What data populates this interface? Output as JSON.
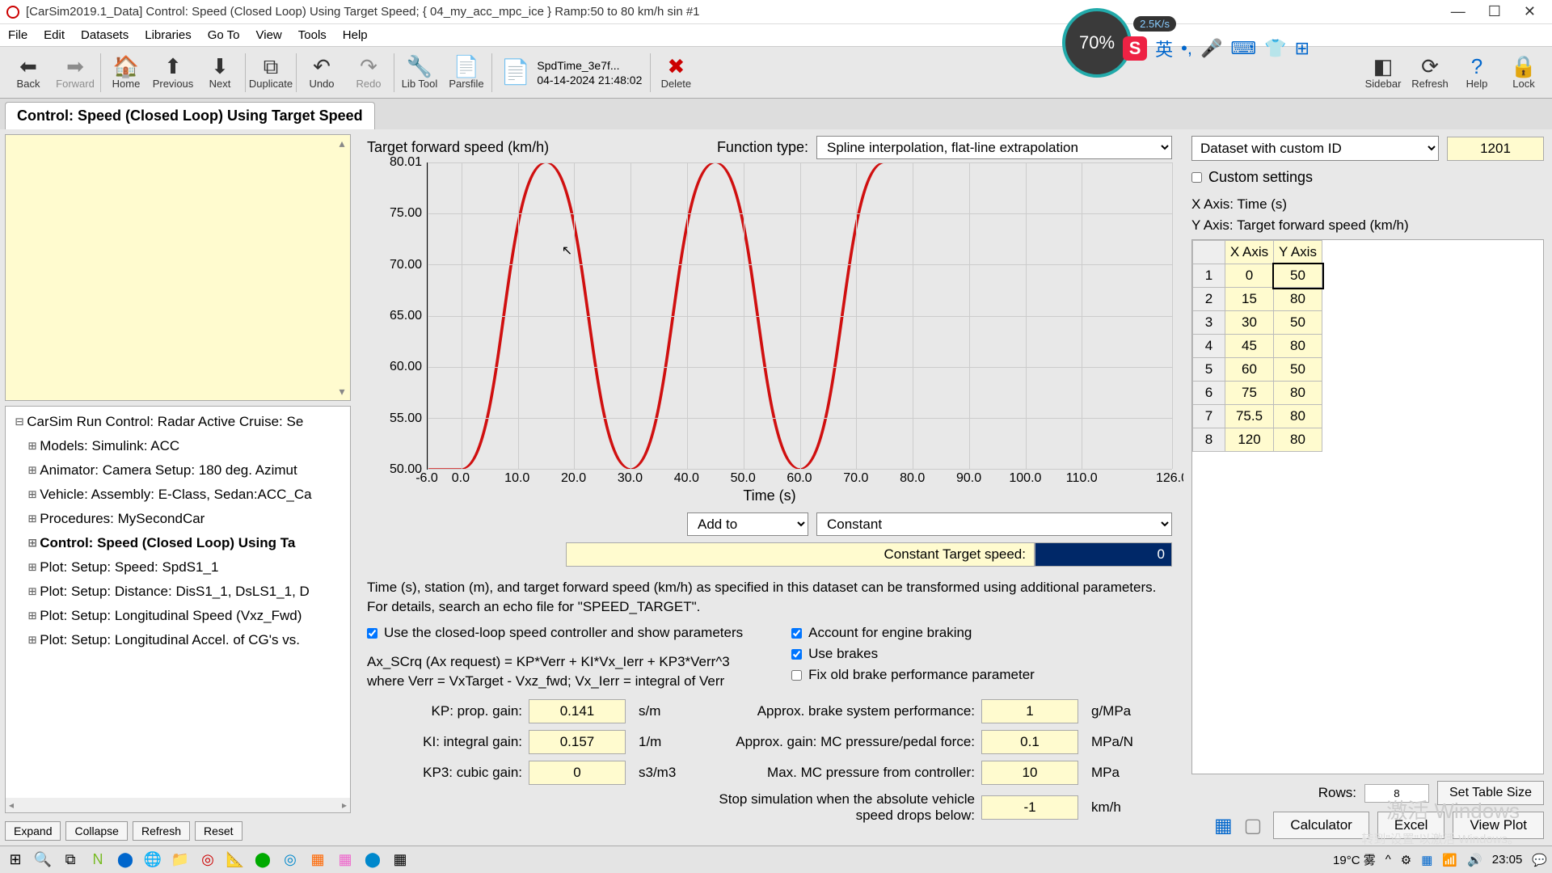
{
  "window": {
    "title": "[CarSim2019.1_Data] Control: Speed (Closed Loop) Using Target Speed; { 04_my_acc_mpc_ice } Ramp:50 to 80 km/h sin #1"
  },
  "menu": [
    "File",
    "Edit",
    "Datasets",
    "Libraries",
    "Go To",
    "View",
    "Tools",
    "Help"
  ],
  "toolbar": {
    "back": "Back",
    "forward": "Forward",
    "home": "Home",
    "previous": "Previous",
    "next": "Next",
    "duplicate": "Duplicate",
    "undo": "Undo",
    "redo": "Redo",
    "libtool": "Lib Tool",
    "parsfile": "Parsfile",
    "file_name": "SpdTime_3e7f...",
    "file_date": "04-14-2024 21:48:02",
    "delete": "Delete",
    "sidebar": "Sidebar",
    "refresh": "Refresh",
    "help": "Help",
    "lock": "Lock"
  },
  "overlay": {
    "percent": "70%",
    "badge": "2.5K/s",
    "ime": "英"
  },
  "tab": "Control: Speed (Closed Loop) Using Target Speed",
  "tree": [
    "CarSim Run Control: Radar Active Cruise: Se",
    "Models: Simulink: ACC",
    "Animator: Camera Setup: 180 deg. Azimut",
    "Vehicle: Assembly: E-Class, Sedan:ACC_Ca",
    "Procedures: MySecondCar",
    "Control: Speed (Closed Loop) Using Ta",
    "Plot: Setup: Speed: SpdS1_1",
    "Plot: Setup: Distance: DisS1_1, DsLS1_1, D",
    "Plot: Setup: Longitudinal Speed (Vxz_Fwd)",
    "Plot: Setup: Longitudinal Accel. of CG's vs."
  ],
  "tree_buttons": {
    "expand": "Expand",
    "collapse": "Collapse",
    "refresh": "Refresh",
    "reset": "Reset"
  },
  "chart": {
    "ylabel": "Target forward speed (km/h)",
    "fn_label": "Function type:",
    "fn_value": "Spline interpolation, flat-line extrapolation",
    "xlabel": "Time (s)",
    "yticks": [
      "80.01",
      "75.00",
      "70.00",
      "65.00",
      "60.00",
      "55.00",
      "50.00"
    ],
    "xticks": [
      "-6.0",
      "0.0",
      "10.0",
      "20.0",
      "30.0",
      "40.0",
      "50.0",
      "60.0",
      "70.0",
      "80.0",
      "90.0",
      "100.0",
      "110.0",
      "126.0"
    ],
    "ylim": [
      50,
      80.01
    ],
    "xlim": [
      -6,
      126
    ],
    "line_color": "#d01010",
    "grid_color": "#cccccc",
    "data": [
      [
        -6,
        50
      ],
      [
        0,
        50
      ],
      [
        15,
        80
      ],
      [
        30,
        50
      ],
      [
        45,
        80
      ],
      [
        60,
        50
      ],
      [
        75,
        80
      ],
      [
        75.5,
        80
      ],
      [
        120,
        80
      ],
      [
        126,
        80
      ]
    ]
  },
  "mid": {
    "addto": "Add to",
    "constant": "Constant",
    "ct_label": "Constant Target speed:",
    "ct_value": "0"
  },
  "desc": "Time (s), station (m), and target forward speed (km/h) as specified in this dataset can be transformed using additional parameters. For details, search an echo file for \"SPEED_TARGET\".",
  "checks": {
    "c1": "Use the closed-loop speed controller and show parameters",
    "c2": "Account for engine braking",
    "c3": "Use brakes",
    "c4": "Fix old brake performance parameter"
  },
  "formula": "Ax_SCrq (Ax request) = KP*Verr + KI*Vx_Ierr  + KP3*Verr^3\nwhere Verr = VxTarget - Vxz_fwd; Vx_Ierr = integral of Verr",
  "params": {
    "kp_l": "KP: prop. gain:",
    "kp_v": "0.141",
    "kp_u": "s/m",
    "ki_l": "KI: integral gain:",
    "ki_v": "0.157",
    "ki_u": "1/m",
    "kp3_l": "KP3: cubic gain:",
    "kp3_v": "0",
    "kp3_u": "s3/m3",
    "abp_l": "Approx. brake system performance:",
    "abp_v": "1",
    "abp_u": "g/MPa",
    "amc_l": "Approx. gain: MC pressure/pedal force:",
    "amc_v": "0.1",
    "amc_u": "MPa/N",
    "mmc_l": "Max. MC pressure from controller:",
    "mmc_v": "10",
    "mmc_u": "MPa",
    "stop_l": "Stop simulation when the absolute vehicle speed drops below:",
    "stop_v": "-1",
    "stop_u": "km/h"
  },
  "right": {
    "ds": "Dataset with custom ID",
    "id": "1201",
    "custom": "Custom settings",
    "xaxis": "X Axis: Time (s)",
    "yaxis": "Y Axis: Target forward speed (km/h)",
    "th1": "X Axis",
    "th2": "Y Axis",
    "rows": [
      [
        "0",
        "50"
      ],
      [
        "15",
        "80"
      ],
      [
        "30",
        "50"
      ],
      [
        "45",
        "80"
      ],
      [
        "60",
        "50"
      ],
      [
        "75",
        "80"
      ],
      [
        "75.5",
        "80"
      ],
      [
        "120",
        "80"
      ]
    ],
    "rows_label": "Rows:",
    "rows_n": "8",
    "set_size": "Set Table Size",
    "calc": "Calculator",
    "excel": "Excel",
    "view": "View Plot"
  },
  "watermark": "激活 Windows",
  "watermark2": "转到\"设置\"以激活 Windows。",
  "taskbar": {
    "weather": "19°C  雾",
    "time": "23:05"
  }
}
